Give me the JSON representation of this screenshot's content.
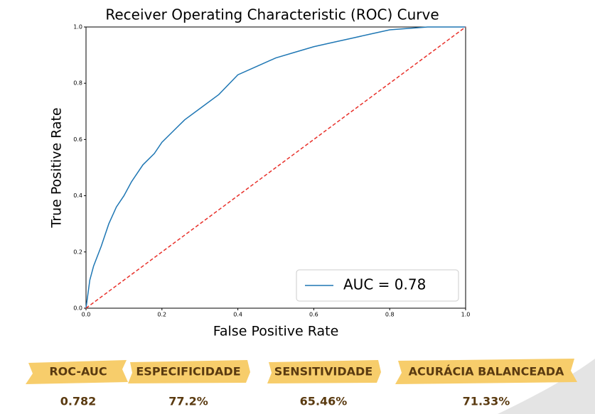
{
  "chart_data": {
    "type": "line",
    "title": "Receiver Operating Characteristic (ROC) Curve",
    "x_label": "False Positive Rate",
    "y_label": "True Positive Rate",
    "xlim": [
      0,
      1
    ],
    "ylim": [
      0,
      1
    ],
    "xticks": [
      {
        "value": 0,
        "label": "0.0"
      },
      0.2,
      0.4,
      0.6,
      0.8,
      {
        "value": 1,
        "label": "1.0"
      }
    ],
    "yticks": [
      {
        "value": 0,
        "label": "0.0"
      },
      0.2,
      0.4,
      0.6,
      0.8,
      {
        "value": 1,
        "label": "1.0"
      }
    ],
    "legend": "lower right",
    "series": [
      {
        "name": "AUC = 0.78",
        "color": "#1f77b4",
        "linestyle": "solid",
        "x": [
          0,
          0.01,
          0.02,
          0.04,
          0.06,
          0.08,
          0.1,
          0.12,
          0.15,
          0.18,
          0.2,
          0.23,
          0.26,
          0.3,
          0.35,
          0.4,
          0.45,
          0.5,
          0.55,
          0.6,
          0.65,
          0.7,
          0.75,
          0.8,
          0.85,
          0.9,
          1
        ],
        "values": [
          0,
          0.1,
          0.15,
          0.22,
          0.3,
          0.36,
          0.4,
          0.45,
          0.51,
          0.55,
          0.59,
          0.63,
          0.67,
          0.71,
          0.76,
          0.83,
          0.86,
          0.89,
          0.91,
          0.93,
          0.945,
          0.96,
          0.975,
          0.99,
          0.995,
          1,
          1
        ]
      },
      {
        "color": "#e8302a",
        "linestyle": "dashed",
        "x": [
          0,
          1
        ],
        "values": [
          0,
          1
        ]
      }
    ]
  },
  "metrics": [
    {
      "label": "ROC-AUC",
      "value": "0.782"
    },
    {
      "label": "ESPECIFICIDADE",
      "value": "77.2%"
    },
    {
      "label": "SENSITIVIDADE",
      "value": "65.46%"
    },
    {
      "label": "ACURÁCIA BALANCEADA",
      "value": "71.33%"
    }
  ]
}
